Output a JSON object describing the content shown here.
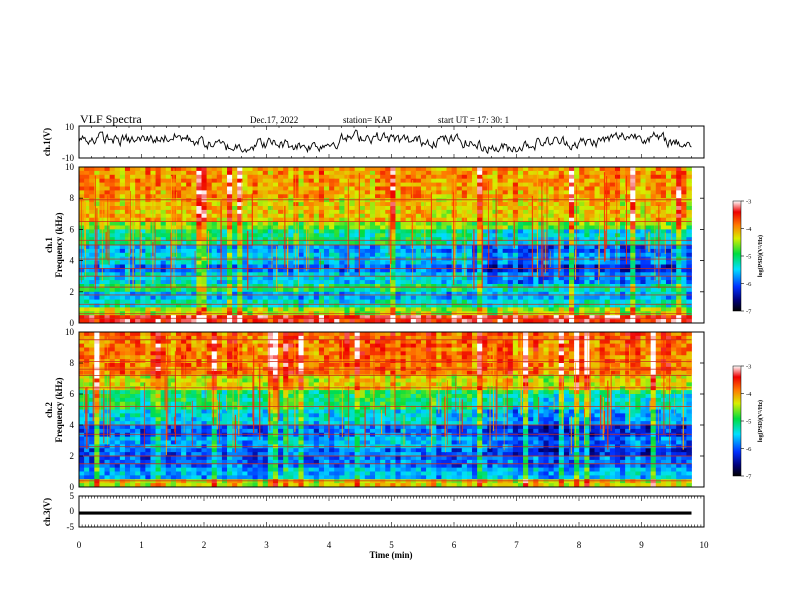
{
  "header": {
    "title": "VLF Spectra",
    "date": "Dec.17, 2022",
    "station": "station= KAP",
    "start": "start  UT  =   17: 30: 1"
  },
  "chart_data": [
    {
      "type": "line",
      "panel": "ch1-waveform",
      "ylabel": "ch.1(V)",
      "ylim": [
        -10,
        10
      ],
      "ytick_labels": [
        "10",
        "-10"
      ],
      "xlim": [
        0,
        10
      ],
      "note_values": "noisy waveform oscillating roughly between -7 and +8 V over 0-9.8 min",
      "y_range_observed": [
        -7,
        8
      ]
    },
    {
      "type": "heatmap",
      "panel": "ch1-spectrogram",
      "ylabel": "ch.1\nFrequency (kHz)",
      "ylabel_lines": [
        "ch.1",
        "Frequency (kHz)"
      ],
      "ylim": [
        0,
        10
      ],
      "ytick_labels": [
        "0",
        "2",
        "4",
        "6",
        "8",
        "10"
      ],
      "xlim": [
        0,
        10
      ],
      "data_end_min": 9.8,
      "colorbar": {
        "label": "log(PSD)(V²/Hz)",
        "range": [
          -7,
          -3
        ],
        "tick_labels": [
          "-3",
          "-4",
          "-5",
          "-6",
          "-7"
        ]
      },
      "bands_log_psd": [
        {
          "f": [
            0.0,
            0.5
          ],
          "level": -3.4
        },
        {
          "f": [
            0.5,
            1.0
          ],
          "level": -4.5
        },
        {
          "f": [
            1.0,
            1.6
          ],
          "level": -5.3
        },
        {
          "f": [
            1.6,
            2.0
          ],
          "level": -5.6
        },
        {
          "f": [
            2.0,
            2.6
          ],
          "level": -5.0
        },
        {
          "f": [
            2.6,
            3.2
          ],
          "level": -5.5
        },
        {
          "f": [
            3.2,
            3.7
          ],
          "level": -5.9
        },
        {
          "f": [
            3.7,
            4.4
          ],
          "level": -5.5
        },
        {
          "f": [
            4.4,
            5.0
          ],
          "level": -5.7
        },
        {
          "f": [
            5.0,
            6.0
          ],
          "level": -5.1
        },
        {
          "f": [
            6.0,
            6.6
          ],
          "level": -4.6
        },
        {
          "f": [
            6.6,
            8.0
          ],
          "level": -4.2
        },
        {
          "f": [
            8.0,
            10.0
          ],
          "level": -4.0
        }
      ],
      "lines_khz": [
        0.3,
        0.6,
        1.2,
        1.8,
        2.3,
        3.0,
        3.5,
        4.1,
        5.0,
        5.3,
        6.5,
        7.9
      ]
    },
    {
      "type": "heatmap",
      "panel": "ch2-spectrogram",
      "ylabel": "ch.2\nFrequency (kHz)",
      "ylabel_lines": [
        "ch.2",
        "Frequency (kHz)"
      ],
      "ylim": [
        0,
        10
      ],
      "ytick_labels": [
        "0",
        "2",
        "4",
        "6",
        "8",
        "10"
      ],
      "xlim": [
        0,
        10
      ],
      "data_end_min": 9.8,
      "colorbar": {
        "label": "log(PSD)(V²/Hz)",
        "range": [
          -7,
          -3
        ],
        "tick_labels": [
          "-3",
          "-4",
          "-5",
          "-6",
          "-7"
        ]
      },
      "bands_log_psd": [
        {
          "f": [
            0.0,
            0.4
          ],
          "level": -4.3
        },
        {
          "f": [
            0.4,
            1.2
          ],
          "level": -5.6
        },
        {
          "f": [
            1.2,
            2.4
          ],
          "level": -5.9
        },
        {
          "f": [
            2.4,
            3.2
          ],
          "level": -5.6
        },
        {
          "f": [
            3.2,
            4.0
          ],
          "level": -5.9
        },
        {
          "f": [
            4.0,
            5.0
          ],
          "level": -5.4
        },
        {
          "f": [
            5.0,
            6.2
          ],
          "level": -5.0
        },
        {
          "f": [
            6.2,
            7.2
          ],
          "level": -4.3
        },
        {
          "f": [
            7.2,
            10.0
          ],
          "level": -3.8
        }
      ],
      "lines_khz": [
        0.4,
        1.5,
        2.0,
        2.6,
        3.4,
        4.0,
        5.2,
        6.4,
        7.2,
        7.6,
        8.1,
        9.5
      ]
    },
    {
      "type": "line",
      "panel": "ch3-waveform",
      "ylabel": "ch.3(V)",
      "ylim": [
        -5,
        5
      ],
      "ytick_labels": [
        "5",
        "0",
        "-5"
      ],
      "xlim": [
        0,
        10
      ],
      "xlabel": "Time  (min)",
      "xtick_labels": [
        "0",
        "1",
        "2",
        "3",
        "4",
        "5",
        "6",
        "7",
        "8",
        "9",
        "10"
      ],
      "level_band_v": [
        -1.0,
        0.0
      ]
    }
  ]
}
